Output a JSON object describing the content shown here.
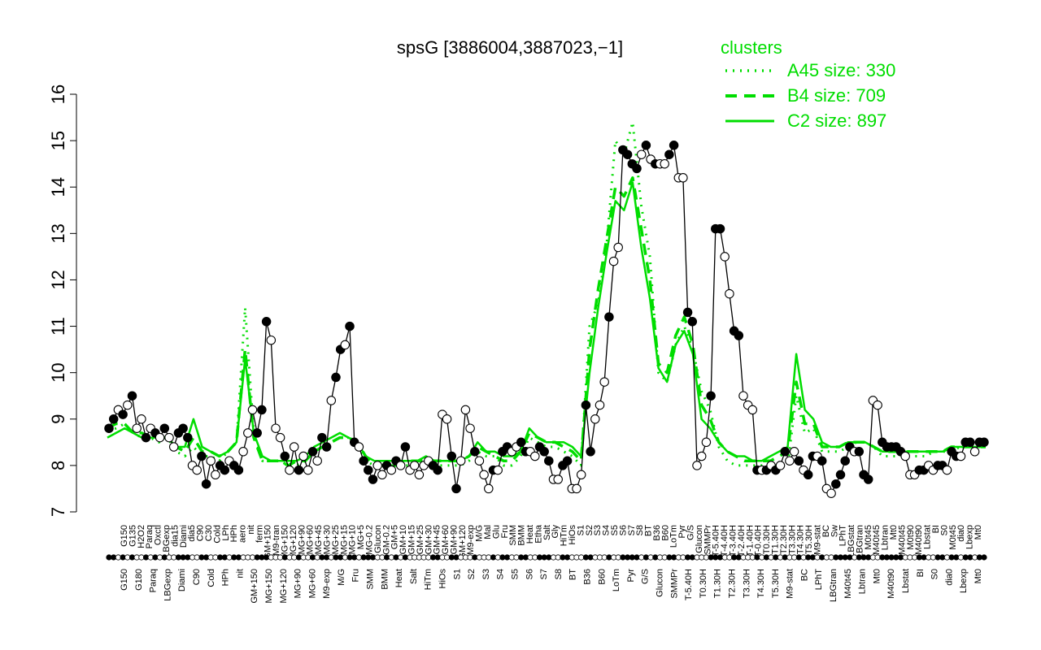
{
  "chart_data": {
    "type": "line",
    "title": "spsG [3886004,3887023,−1]",
    "xlabel": "",
    "ylabel": "",
    "ylim": [
      7,
      16
    ],
    "yticks": [
      7,
      8,
      9,
      10,
      11,
      12,
      13,
      14,
      15,
      16
    ],
    "grid": false,
    "legend": {
      "title": "clusters",
      "placement": "top-right",
      "entries": [
        {
          "label": "A45 size: 330",
          "style": "dotted"
        },
        {
          "label": "B4 size: 709",
          "style": "dashed"
        },
        {
          "label": "C2 size: 897",
          "style": "solid"
        }
      ]
    },
    "colors": {
      "clusters": "#00dd00",
      "profile": "#000000",
      "filled": "#000000",
      "open": "#ffffff"
    },
    "x_labels_top": [
      "G150",
      "G135",
      "H2O2",
      "Paraq",
      "Oxctl",
      "LBGexp",
      "dia15",
      "Diami",
      "dia5",
      "C90",
      "C30",
      "Cold",
      "LPh",
      "HPh",
      "aero",
      "nit",
      "ferm",
      "GM+150",
      "M9-tran",
      "MG+150",
      "MG+120",
      "MG+90",
      "MG+60",
      "MG+45",
      "MG+30",
      "MG+25",
      "MG+15",
      "MG+10",
      "MG+5",
      "MG-0.2",
      "Glucon",
      "GM-0.2",
      "GM+5",
      "GM+10",
      "GM+15",
      "GM+25",
      "GM+30",
      "GM+45",
      "GM+60",
      "GM+90",
      "GM+120",
      "M9-exp",
      "M/G",
      "Mal",
      "Glu",
      "Fru",
      "SMM",
      "BMM",
      "Heat",
      "Etha",
      "Salt",
      "Gly",
      "HiTm",
      "HiOs",
      "S1",
      "S2",
      "S3",
      "S4",
      "S5",
      "S6",
      "S7",
      "S8",
      "BT",
      "B36",
      "B60",
      "LoTm",
      "Pyr",
      "G/S",
      "Glucon",
      "SMMPr",
      "T-5.40H",
      "T-4.40H",
      "T-3.40H",
      "T-2.40H",
      "T-1.40H",
      "T-0.40H",
      "T0.30H",
      "T1.30H",
      "T2.30H",
      "T3.30H",
      "T4.30H",
      "T5.30H",
      "M9-stat",
      "BC",
      "Sw",
      "LPhT",
      "LBGstat",
      "LBGtran",
      "M0t45",
      "M40t45",
      "Lbtran",
      "Mt0",
      "M40t45",
      "M0t90",
      "M40t90",
      "Lbstat",
      "BI",
      "S0",
      "M0t45",
      "dia0",
      "Lbexp",
      "Mt0"
    ],
    "x_labels_bottom": [
      "G150",
      "G180",
      "Paraq",
      "LBGexp",
      "Diami",
      "C90",
      "Cold",
      "HPh",
      "nit",
      "GM+150",
      "MG+150",
      "MG+120",
      "MG+90",
      "MG+60",
      "M9-exp",
      "M/G",
      "Fru",
      "SMM",
      "BMM",
      "Heat",
      "Salt",
      "HiTm",
      "HiOs",
      "S1",
      "S2",
      "S3",
      "S4",
      "S5",
      "S6",
      "S7",
      "S8",
      "BT",
      "B36",
      "B60",
      "LoTm",
      "Pyr",
      "G/S",
      "Glucon",
      "SMMPr",
      "T-5.40H",
      "T0.30H",
      "T1.30H",
      "T2.30H",
      "T3.30H",
      "T4.30H",
      "T5.30H",
      "M9-stat",
      "BC",
      "LPhT",
      "LBGtran",
      "M40t45",
      "Lbtran",
      "Mt0",
      "M40t90",
      "Lbstat",
      "BI",
      "S0",
      "dia0",
      "Lbexp",
      "Mt0"
    ],
    "cluster_lines": [
      {
        "name": "A45 size: 330",
        "style": "dotted",
        "values": [
          8.8,
          8.8,
          8.9,
          8.7,
          8.6,
          8.6,
          8.5,
          8.6,
          8.3,
          8.2,
          8.4,
          8.2,
          8.2,
          8.1,
          8.3,
          8.5,
          11.4,
          8.7,
          8.1,
          8.1,
          8.1,
          8.0,
          8.0,
          8.1,
          8.3,
          8.4,
          8.5,
          8.6,
          8.6,
          8.5,
          8.1,
          8.0,
          8.0,
          8.0,
          8.0,
          8.0,
          8.0,
          8.1,
          8.0,
          8.0,
          8.0,
          8.0,
          8.1,
          8.3,
          8.2,
          8.2,
          8.0,
          8.0,
          8.2,
          8.6,
          8.5,
          8.4,
          8.4,
          8.3,
          8.2,
          8.0,
          11.0,
          11.5,
          12.8,
          15.0,
          14.7,
          15.4,
          13.6,
          12.5,
          10.0,
          9.8,
          10.6,
          11.0,
          10.5,
          9.6,
          9.2,
          8.4,
          8.1,
          8.0,
          8.0,
          8.0,
          8.0,
          8.0,
          8.0,
          8.0,
          9.5,
          8.7,
          8.8,
          8.3,
          8.3,
          8.3,
          8.4,
          8.5,
          8.5,
          8.4,
          8.2,
          8.2,
          8.2,
          8.2,
          8.2,
          8.2,
          8.3,
          8.3,
          8.3,
          8.4,
          8.4,
          8.4,
          8.4
        ]
      },
      {
        "name": "B4 size: 709",
        "style": "dashed",
        "values": [
          8.8,
          8.9,
          8.9,
          8.7,
          8.7,
          8.6,
          8.6,
          8.6,
          8.4,
          8.3,
          8.6,
          8.3,
          8.3,
          8.2,
          8.3,
          8.5,
          10.5,
          8.6,
          8.1,
          8.1,
          8.1,
          8.0,
          8.1,
          8.1,
          8.3,
          8.4,
          8.5,
          8.6,
          8.6,
          8.5,
          8.2,
          8.0,
          8.0,
          8.0,
          8.0,
          8.1,
          8.1,
          8.1,
          8.1,
          8.1,
          8.1,
          8.1,
          8.2,
          8.4,
          8.3,
          8.2,
          8.1,
          8.1,
          8.3,
          8.7,
          8.6,
          8.5,
          8.5,
          8.4,
          8.3,
          8.1,
          10.5,
          11.8,
          12.9,
          14.0,
          13.8,
          14.2,
          13.1,
          12.0,
          10.2,
          10.0,
          10.8,
          11.2,
          10.6,
          9.3,
          9.0,
          8.5,
          8.3,
          8.2,
          8.1,
          8.1,
          8.1,
          8.1,
          8.2,
          8.3,
          9.8,
          8.9,
          8.9,
          8.4,
          8.4,
          8.4,
          8.5,
          8.5,
          8.5,
          8.4,
          8.3,
          8.3,
          8.3,
          8.3,
          8.3,
          8.3,
          8.3,
          8.3,
          8.4,
          8.4,
          8.4,
          8.4,
          8.4
        ]
      },
      {
        "name": "C2 size: 897",
        "style": "solid",
        "values": [
          8.6,
          8.7,
          8.8,
          8.7,
          8.6,
          8.6,
          8.6,
          8.6,
          8.4,
          8.4,
          9.0,
          8.4,
          8.3,
          8.2,
          8.3,
          8.5,
          10.3,
          8.7,
          8.2,
          8.1,
          8.1,
          8.1,
          8.1,
          8.2,
          8.4,
          8.5,
          8.6,
          8.7,
          8.6,
          8.5,
          8.2,
          8.1,
          8.1,
          8.1,
          8.1,
          8.1,
          8.1,
          8.2,
          8.1,
          8.1,
          8.1,
          8.1,
          8.2,
          8.5,
          8.3,
          8.3,
          8.2,
          8.2,
          8.3,
          8.8,
          8.6,
          8.5,
          8.5,
          8.5,
          8.4,
          8.2,
          10.0,
          11.4,
          12.6,
          13.7,
          13.5,
          14.1,
          12.7,
          11.6,
          10.1,
          9.8,
          10.6,
          10.9,
          10.4,
          9.0,
          8.8,
          8.5,
          8.3,
          8.2,
          8.2,
          8.1,
          8.1,
          8.2,
          8.3,
          8.4,
          10.4,
          9.2,
          9.0,
          8.5,
          8.4,
          8.4,
          8.5,
          8.5,
          8.5,
          8.4,
          8.3,
          8.3,
          8.3,
          8.3,
          8.3,
          8.3,
          8.3,
          8.3,
          8.4,
          8.4,
          8.4,
          8.4,
          8.4
        ]
      }
    ],
    "profile_points": [
      [
        8.8,
        "f"
      ],
      [
        9.0,
        "f"
      ],
      [
        9.2,
        "o"
      ],
      [
        9.1,
        "f"
      ],
      [
        9.3,
        "o"
      ],
      [
        9.5,
        "f"
      ],
      [
        8.8,
        "o"
      ],
      [
        9.0,
        "o"
      ],
      [
        8.6,
        "f"
      ],
      [
        8.8,
        "o"
      ],
      [
        8.7,
        "f"
      ],
      [
        8.6,
        "o"
      ],
      [
        8.8,
        "f"
      ],
      [
        8.6,
        "o"
      ],
      [
        8.4,
        "o"
      ],
      [
        8.7,
        "f"
      ],
      [
        8.8,
        "f"
      ],
      [
        8.6,
        "f"
      ],
      [
        8.0,
        "o"
      ],
      [
        7.9,
        "o"
      ],
      [
        8.2,
        "f"
      ],
      [
        7.6,
        "f"
      ],
      [
        8.1,
        "o"
      ],
      [
        7.8,
        "o"
      ],
      [
        8.0,
        "f"
      ],
      [
        7.9,
        "f"
      ],
      [
        8.1,
        "o"
      ],
      [
        8.0,
        "f"
      ],
      [
        7.9,
        "f"
      ],
      [
        8.3,
        "o"
      ],
      [
        8.7,
        "o"
      ],
      [
        9.2,
        "o"
      ],
      [
        8.7,
        "f"
      ],
      [
        9.2,
        "f"
      ],
      [
        11.1,
        "f"
      ],
      [
        10.7,
        "o"
      ],
      [
        8.8,
        "o"
      ],
      [
        8.6,
        "o"
      ],
      [
        8.2,
        "f"
      ],
      [
        7.9,
        "o"
      ],
      [
        8.4,
        "o"
      ],
      [
        7.9,
        "f"
      ],
      [
        8.2,
        "o"
      ],
      [
        7.9,
        "o"
      ],
      [
        8.3,
        "f"
      ],
      [
        8.1,
        "o"
      ],
      [
        8.6,
        "f"
      ],
      [
        8.4,
        "f"
      ],
      [
        9.4,
        "o"
      ],
      [
        9.9,
        "f"
      ],
      [
        10.5,
        "f"
      ],
      [
        10.6,
        "o"
      ],
      [
        11.0,
        "f"
      ],
      [
        8.5,
        "f"
      ],
      [
        8.4,
        "o"
      ],
      [
        8.1,
        "f"
      ],
      [
        7.9,
        "f"
      ],
      [
        7.7,
        "f"
      ],
      [
        8.0,
        "o"
      ],
      [
        7.8,
        "o"
      ],
      [
        8.0,
        "f"
      ],
      [
        7.9,
        "o"
      ],
      [
        8.1,
        "f"
      ],
      [
        8.0,
        "o"
      ],
      [
        8.4,
        "f"
      ],
      [
        7.9,
        "o"
      ],
      [
        8.0,
        "o"
      ],
      [
        7.8,
        "o"
      ],
      [
        8.0,
        "o"
      ],
      [
        8.1,
        "o"
      ],
      [
        8.0,
        "f"
      ],
      [
        7.9,
        "f"
      ],
      [
        9.1,
        "o"
      ],
      [
        9.0,
        "o"
      ],
      [
        8.2,
        "f"
      ],
      [
        7.5,
        "f"
      ],
      [
        8.1,
        "o"
      ],
      [
        9.2,
        "o"
      ],
      [
        8.8,
        "o"
      ],
      [
        8.3,
        "f"
      ],
      [
        8.1,
        "o"
      ],
      [
        7.8,
        "o"
      ],
      [
        7.5,
        "o"
      ],
      [
        7.9,
        "f"
      ],
      [
        7.9,
        "o"
      ],
      [
        8.3,
        "f"
      ],
      [
        8.4,
        "f"
      ],
      [
        8.3,
        "o"
      ],
      [
        8.4,
        "o"
      ],
      [
        8.5,
        "f"
      ],
      [
        8.3,
        "f"
      ],
      [
        8.3,
        "o"
      ],
      [
        8.2,
        "o"
      ],
      [
        8.4,
        "f"
      ],
      [
        8.3,
        "f"
      ],
      [
        8.1,
        "f"
      ],
      [
        7.7,
        "o"
      ],
      [
        7.7,
        "o"
      ],
      [
        8.0,
        "f"
      ],
      [
        8.1,
        "f"
      ],
      [
        7.5,
        "o"
      ],
      [
        7.5,
        "o"
      ],
      [
        7.8,
        "o"
      ],
      [
        9.3,
        "f"
      ],
      [
        8.3,
        "f"
      ],
      [
        9.0,
        "o"
      ],
      [
        9.3,
        "o"
      ],
      [
        9.8,
        "o"
      ],
      [
        11.2,
        "f"
      ],
      [
        12.4,
        "o"
      ],
      [
        12.7,
        "o"
      ],
      [
        14.8,
        "f"
      ],
      [
        14.7,
        "f"
      ],
      [
        14.5,
        "f"
      ],
      [
        14.4,
        "f"
      ],
      [
        14.7,
        "o"
      ],
      [
        14.9,
        "f"
      ],
      [
        14.6,
        "o"
      ],
      [
        14.5,
        "f"
      ],
      [
        14.5,
        "o"
      ],
      [
        14.5,
        "o"
      ],
      [
        14.7,
        "f"
      ],
      [
        14.9,
        "f"
      ],
      [
        14.2,
        "o"
      ],
      [
        14.2,
        "o"
      ],
      [
        11.3,
        "f"
      ],
      [
        11.1,
        "f"
      ],
      [
        8.0,
        "o"
      ],
      [
        8.2,
        "o"
      ],
      [
        8.5,
        "o"
      ],
      [
        9.5,
        "f"
      ],
      [
        13.1,
        "f"
      ],
      [
        13.1,
        "f"
      ],
      [
        12.5,
        "o"
      ],
      [
        11.7,
        "o"
      ],
      [
        10.9,
        "f"
      ],
      [
        10.8,
        "f"
      ],
      [
        9.5,
        "o"
      ],
      [
        9.3,
        "o"
      ],
      [
        9.2,
        "o"
      ],
      [
        7.9,
        "f"
      ],
      [
        7.9,
        "o"
      ],
      [
        7.9,
        "f"
      ],
      [
        8.0,
        "o"
      ],
      [
        7.9,
        "f"
      ],
      [
        8.0,
        "o"
      ],
      [
        8.3,
        "f"
      ],
      [
        8.1,
        "o"
      ],
      [
        8.3,
        "o"
      ],
      [
        8.1,
        "f"
      ],
      [
        7.9,
        "o"
      ],
      [
        7.8,
        "f"
      ],
      [
        8.2,
        "f"
      ],
      [
        8.2,
        "o"
      ],
      [
        8.1,
        "f"
      ],
      [
        7.5,
        "o"
      ],
      [
        7.4,
        "o"
      ],
      [
        7.6,
        "f"
      ],
      [
        7.8,
        "f"
      ],
      [
        8.1,
        "f"
      ],
      [
        8.4,
        "f"
      ],
      [
        8.3,
        "o"
      ],
      [
        8.3,
        "f"
      ],
      [
        7.8,
        "f"
      ],
      [
        7.7,
        "f"
      ],
      [
        9.4,
        "o"
      ],
      [
        9.3,
        "o"
      ],
      [
        8.5,
        "f"
      ],
      [
        8.4,
        "f"
      ],
      [
        8.4,
        "f"
      ],
      [
        8.4,
        "f"
      ],
      [
        8.3,
        "f"
      ],
      [
        8.2,
        "o"
      ],
      [
        7.8,
        "o"
      ],
      [
        7.8,
        "o"
      ],
      [
        7.9,
        "f"
      ],
      [
        7.9,
        "f"
      ],
      [
        8.0,
        "o"
      ],
      [
        7.9,
        "o"
      ],
      [
        8.0,
        "f"
      ],
      [
        8.0,
        "f"
      ],
      [
        7.9,
        "o"
      ],
      [
        8.3,
        "f"
      ],
      [
        8.2,
        "f"
      ],
      [
        8.2,
        "o"
      ],
      [
        8.5,
        "f"
      ],
      [
        8.5,
        "f"
      ],
      [
        8.3,
        "o"
      ],
      [
        8.5,
        "f"
      ],
      [
        8.5,
        "f"
      ]
    ]
  }
}
